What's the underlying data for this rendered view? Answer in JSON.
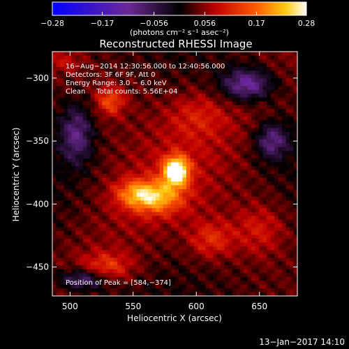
{
  "chart_data": {
    "type": "heatmap",
    "title": "Reconstructed RHESSI Image",
    "xlabel": "Heliocentric X (arcsec)",
    "ylabel": "Heliocentric Y (arcsec)",
    "xlim": [
      486,
      680
    ],
    "ylim": [
      -473,
      -279
    ],
    "x_ticks": [
      500,
      550,
      600,
      650
    ],
    "y_ticks": [
      -300,
      -350,
      -400,
      -450
    ],
    "x_tick_labels": [
      "500",
      "550",
      "600",
      "650"
    ],
    "y_tick_labels": [
      "−300",
      "−350",
      "−400",
      "−450"
    ],
    "colorbar": {
      "min": -0.28,
      "max": 0.28,
      "ticks": [
        -0.28,
        -0.17,
        -0.056,
        0.056,
        0.17,
        0.28
      ],
      "tick_labels": [
        "−0.28",
        "−0.17",
        "−0.056",
        "0.056",
        "0.17",
        "0.28"
      ],
      "unit_label": "(photons cm⁻² s⁻¹ asec⁻²)"
    },
    "annotations": [
      "16−Aug−2014 12:30:56.000 to 12:40:56.000",
      "Detectors: 3F 6F 9F, Att 0",
      "Energy Range: 3.0 − 6.0 keV",
      "Clean     Total counts: 5.56E+04"
    ],
    "peak_label": "Position of Peak = [584,−374]",
    "peak": {
      "x": 584,
      "y": -374,
      "value": 0.28
    },
    "features": [
      {
        "x": 584,
        "y": -374,
        "value": 0.28,
        "sx": 7,
        "sy": 8
      },
      {
        "x": 570,
        "y": -395,
        "value": 0.14,
        "sx": 14,
        "sy": 9
      },
      {
        "x": 552,
        "y": -392,
        "value": 0.12,
        "sx": 12,
        "sy": 8
      },
      {
        "x": 532,
        "y": -318,
        "value": 0.11,
        "sx": 8,
        "sy": 8
      },
      {
        "x": 612,
        "y": -428,
        "value": 0.08,
        "sx": 12,
        "sy": 10
      },
      {
        "x": 530,
        "y": -450,
        "value": 0.09,
        "sx": 14,
        "sy": 8
      },
      {
        "x": 650,
        "y": -420,
        "value": 0.06,
        "sx": 14,
        "sy": 14
      },
      {
        "x": 600,
        "y": -330,
        "value": 0.05,
        "sx": 16,
        "sy": 12
      },
      {
        "x": 640,
        "y": -305,
        "value": -0.16,
        "sx": 14,
        "sy": 9
      },
      {
        "x": 505,
        "y": -345,
        "value": -0.12,
        "sx": 9,
        "sy": 16
      },
      {
        "x": 510,
        "y": -460,
        "value": -0.12,
        "sx": 14,
        "sy": 6
      },
      {
        "x": 660,
        "y": -350,
        "value": -0.12,
        "sx": 9,
        "sy": 10
      },
      {
        "x": 495,
        "y": -287,
        "value": 0.05,
        "sx": 10,
        "sy": 6
      }
    ],
    "colormap": "hot-blue",
    "footer_date": "13−Jan−2017 14:10"
  }
}
